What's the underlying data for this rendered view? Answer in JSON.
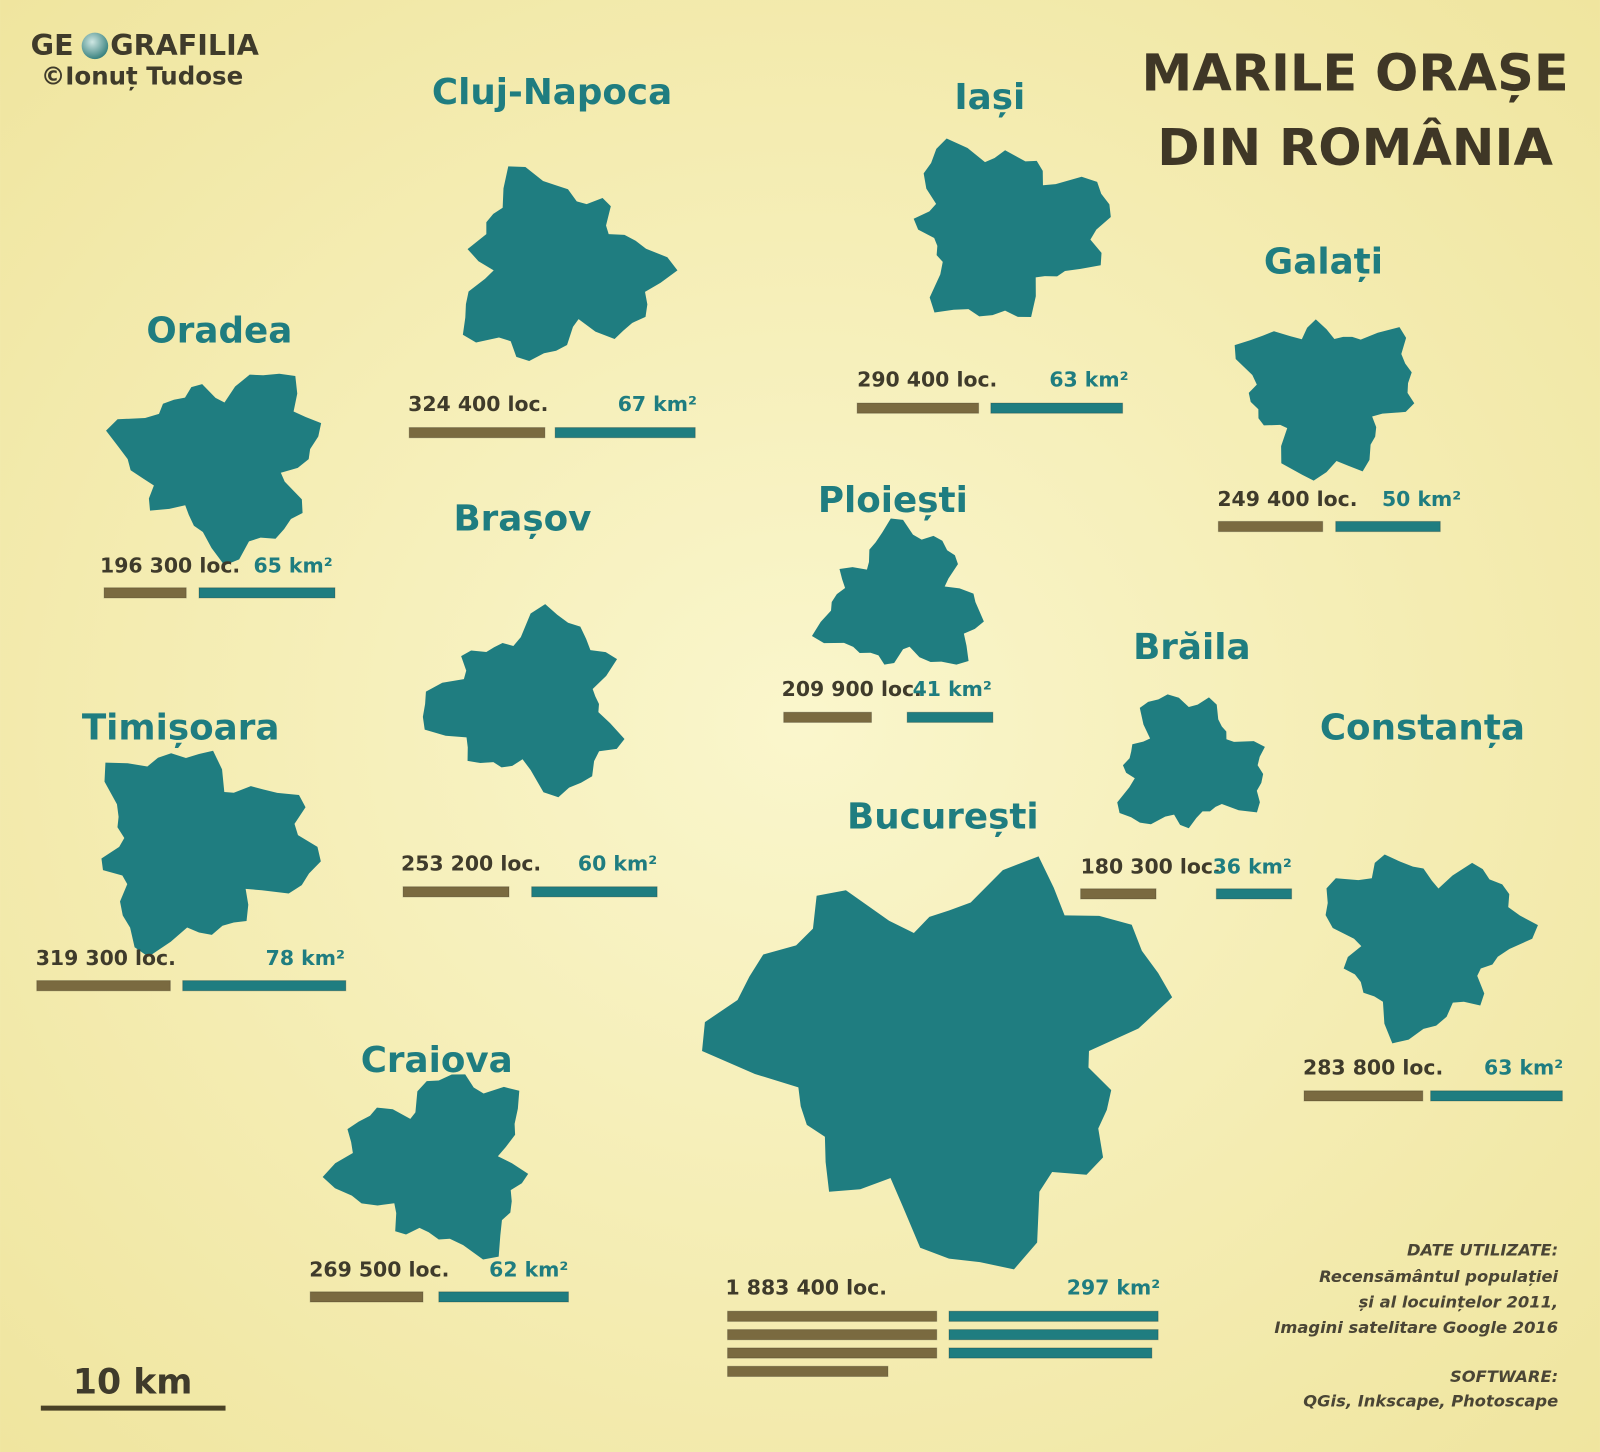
{
  "logo": {
    "left": "GE",
    "right": "GRAFILIA"
  },
  "author": "©Ionuț Tudose",
  "title": [
    "MARILE ORAȘE",
    "DIN ROMÂNIA"
  ],
  "scale_label": "10 km",
  "cities": [
    {
      "name": "Cluj-Napoca",
      "population": 324400,
      "population_label": "324 400 loc.",
      "area": 67,
      "area_label": "67 km²"
    },
    {
      "name": "Iași",
      "population": 290400,
      "population_label": "290 400 loc.",
      "area": 63,
      "area_label": "63 km²"
    },
    {
      "name": "Galați",
      "population": 249400,
      "population_label": "249 400 loc.",
      "area": 50,
      "area_label": "50 km²"
    },
    {
      "name": "Oradea",
      "population": 196300,
      "population_label": "196 300 loc.",
      "area": 65,
      "area_label": "65 km²"
    },
    {
      "name": "Brașov",
      "population": 253200,
      "population_label": "253 200 loc.",
      "area": 60,
      "area_label": "60 km²"
    },
    {
      "name": "Ploiești",
      "population": 209900,
      "population_label": "209 900 loc.",
      "area": 41,
      "area_label": "41 km²"
    },
    {
      "name": "Brăila",
      "population": 180300,
      "population_label": "180 300 loc.",
      "area": 36,
      "area_label": "36 km²"
    },
    {
      "name": "Timișoara",
      "population": 319300,
      "population_label": "319 300 loc.",
      "area": 78,
      "area_label": "78 km²"
    },
    {
      "name": "Constanța",
      "population": 283800,
      "population_label": "283 800 loc.",
      "area": 63,
      "area_label": "63 km²"
    },
    {
      "name": "București",
      "population": 1883400,
      "population_label": "1 883 400 loc.",
      "area": 297,
      "area_label": "297 km²"
    },
    {
      "name": "Craiova",
      "population": 269500,
      "population_label": "269 500 loc.",
      "area": 62,
      "area_label": "62 km²"
    }
  ],
  "sources": {
    "heading": "DATE UTILIZATE:",
    "lines": [
      "Recensământul populației",
      "și al locuințelor 2011,",
      "Imagini satelitare Google 2016"
    ],
    "software_heading": "SOFTWARE:",
    "software": "QGis, Inkscape, Photoscape"
  }
}
